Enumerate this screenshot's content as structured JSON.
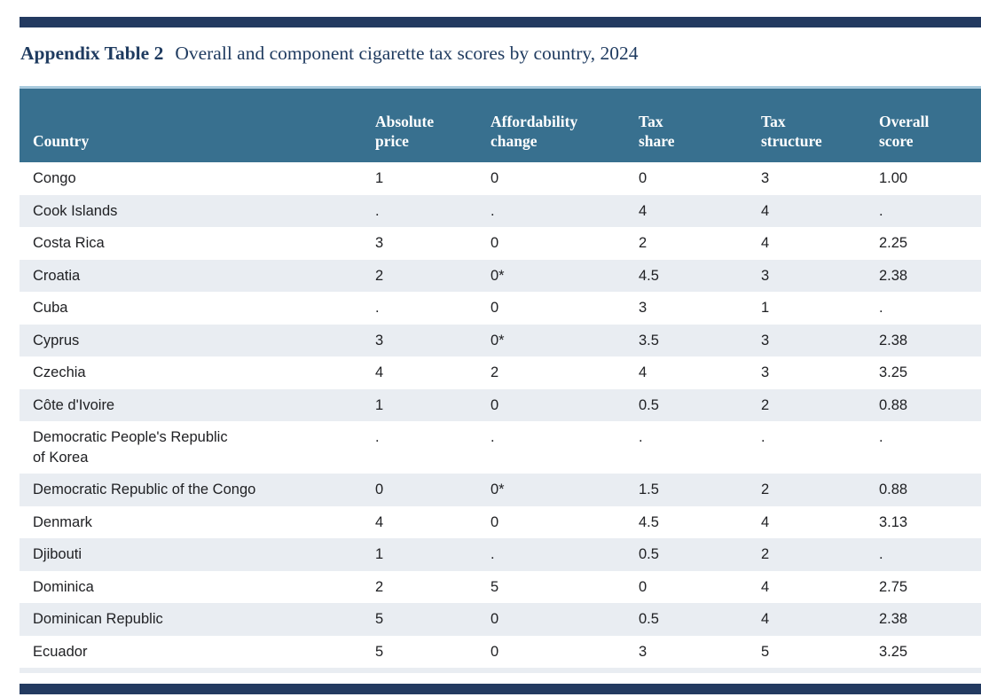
{
  "page": {
    "title_bold": "Appendix Table 2",
    "title_rest": "Overall and component cigarette tax scores by country, 2024"
  },
  "colors": {
    "accent_bar": "#233A60",
    "title_text": "#1E3A5F",
    "header_bg": "#38708F",
    "header_text": "#FFFFFF",
    "header_top_rule": "#A9CADD",
    "row_alt_bg": "#E9EDF2",
    "body_text": "#202124"
  },
  "table": {
    "columns": [
      {
        "key": "country",
        "label": "Country"
      },
      {
        "key": "absolute_price",
        "label": "Absolute\nprice"
      },
      {
        "key": "affordability_change",
        "label": "Affordability\nchange"
      },
      {
        "key": "tax_share",
        "label": "Tax\nshare"
      },
      {
        "key": "tax_structure",
        "label": "Tax\nstructure"
      },
      {
        "key": "overall_score",
        "label": "Overall\nscore"
      }
    ],
    "rows": [
      [
        "Congo",
        "1",
        "0",
        "0",
        "3",
        "1.00"
      ],
      [
        "Cook Islands",
        ".",
        ".",
        "4",
        "4",
        "."
      ],
      [
        "Costa Rica",
        "3",
        "0",
        "2",
        "4",
        "2.25"
      ],
      [
        "Croatia",
        "2",
        "0*",
        "4.5",
        "3",
        "2.38"
      ],
      [
        "Cuba",
        ".",
        "0",
        "3",
        "1",
        "."
      ],
      [
        "Cyprus",
        "3",
        "0*",
        "3.5",
        "3",
        "2.38"
      ],
      [
        "Czechia",
        "4",
        "2",
        "4",
        "3",
        "3.25"
      ],
      [
        "Côte d'Ivoire",
        "1",
        "0",
        "0.5",
        "2",
        "0.88"
      ],
      [
        "Democratic People's Republic\nof Korea",
        ".",
        ".",
        ".",
        ".",
        "."
      ],
      [
        "Democratic Republic of the Congo",
        "0",
        "0*",
        "1.5",
        "2",
        "0.88"
      ],
      [
        "Denmark",
        "4",
        "0",
        "4.5",
        "4",
        "3.13"
      ],
      [
        "Djibouti",
        "1",
        ".",
        "0.5",
        "2",
        "."
      ],
      [
        "Dominica",
        "2",
        "5",
        "0",
        "4",
        "2.75"
      ],
      [
        "Dominican Republic",
        "5",
        "0",
        "0.5",
        "4",
        "2.38"
      ],
      [
        "Ecuador",
        "5",
        "0",
        "3",
        "5",
        "3.25"
      ]
    ]
  }
}
